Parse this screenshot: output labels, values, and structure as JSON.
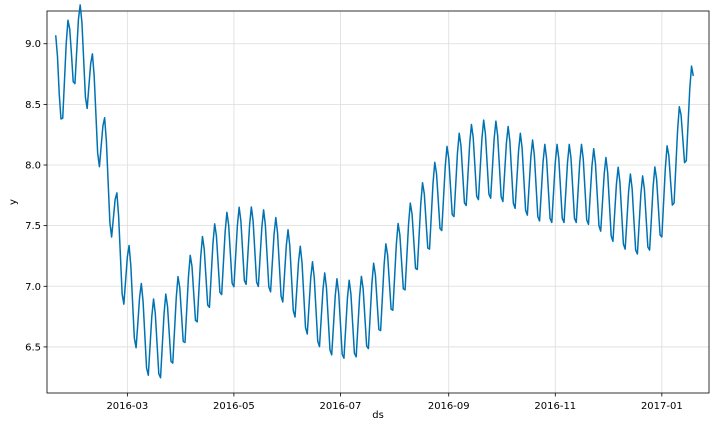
{
  "chart_data": {
    "type": "line",
    "title": "",
    "xlabel": "ds",
    "ylabel": "y",
    "x_range": [
      "2016-01-15",
      "2017-01-28"
    ],
    "ylim": [
      6.12,
      9.27
    ],
    "grid": true,
    "x_ticks": [
      {
        "value": "2016-03-01",
        "label": "2016-03"
      },
      {
        "value": "2016-05-01",
        "label": "2016-05"
      },
      {
        "value": "2016-07-01",
        "label": "2016-07"
      },
      {
        "value": "2016-09-01",
        "label": "2016-09"
      },
      {
        "value": "2016-11-01",
        "label": "2016-11"
      },
      {
        "value": "2017-01-01",
        "label": "2017-01"
      }
    ],
    "y_ticks": [
      {
        "value": 6.5,
        "label": "6.5"
      },
      {
        "value": 7.0,
        "label": "7.0"
      },
      {
        "value": 7.5,
        "label": "7.5"
      },
      {
        "value": 8.0,
        "label": "8.0"
      },
      {
        "value": 8.5,
        "label": "8.5"
      },
      {
        "value": 9.0,
        "label": "9.0"
      }
    ],
    "series": [
      {
        "color": "#0072B2",
        "x": [
          "2016-01-20",
          "2016-01-22",
          "2016-01-24",
          "2016-01-26",
          "2016-01-29",
          "2016-02-02",
          "2016-02-04",
          "2016-02-06",
          "2016-02-08",
          "2016-02-11",
          "2016-02-13",
          "2016-02-15",
          "2016-02-18",
          "2016-02-21",
          "2016-02-24",
          "2016-02-27",
          "2016-03-01",
          "2016-03-04",
          "2016-03-07",
          "2016-03-10",
          "2016-03-13",
          "2016-03-17",
          "2016-03-20",
          "2016-03-24",
          "2016-03-28",
          "2016-04-01",
          "2016-04-05",
          "2016-04-09",
          "2016-04-13",
          "2016-04-17",
          "2016-04-21",
          "2016-04-25",
          "2016-04-29",
          "2016-05-03",
          "2016-05-08",
          "2016-05-13",
          "2016-05-18",
          "2016-05-23",
          "2016-05-28",
          "2016-06-02",
          "2016-06-07",
          "2016-06-12",
          "2016-06-17",
          "2016-06-22",
          "2016-06-27",
          "2016-07-02",
          "2016-07-07",
          "2016-07-12",
          "2016-07-17",
          "2016-07-22",
          "2016-07-27",
          "2016-08-01",
          "2016-08-06",
          "2016-08-11",
          "2016-08-16",
          "2016-08-21",
          "2016-08-26",
          "2016-09-01",
          "2016-09-06",
          "2016-09-11",
          "2016-09-16",
          "2016-09-21",
          "2016-09-26",
          "2016-10-01",
          "2016-10-06",
          "2016-10-11",
          "2016-10-16",
          "2016-10-21",
          "2016-10-26",
          "2016-11-01",
          "2016-11-06",
          "2016-11-11",
          "2016-11-16",
          "2016-11-21",
          "2016-11-26",
          "2016-12-01",
          "2016-12-06",
          "2016-12-11",
          "2016-12-16",
          "2016-12-21",
          "2016-12-26",
          "2017-01-01",
          "2017-01-06",
          "2017-01-10",
          "2017-01-14",
          "2017-01-17",
          "2017-01-19"
        ],
        "trend": [
          8.74,
          8.62,
          8.7,
          8.82,
          8.95,
          9.02,
          8.96,
          8.84,
          8.72,
          8.52,
          8.38,
          8.22,
          7.98,
          7.72,
          7.44,
          7.22,
          7.06,
          6.9,
          6.76,
          6.66,
          6.58,
          6.56,
          6.56,
          6.62,
          6.7,
          6.8,
          6.9,
          7.0,
          7.08,
          7.14,
          7.2,
          7.26,
          7.3,
          7.32,
          7.33,
          7.32,
          7.3,
          7.26,
          7.2,
          7.12,
          7.02,
          6.92,
          6.84,
          6.78,
          6.74,
          6.72,
          6.72,
          6.74,
          6.8,
          6.9,
          7.02,
          7.14,
          7.26,
          7.38,
          7.5,
          7.62,
          7.74,
          7.84,
          7.92,
          7.98,
          8.02,
          8.04,
          8.04,
          8.02,
          7.98,
          7.94,
          7.9,
          7.86,
          7.84,
          7.84,
          7.84,
          7.84,
          7.84,
          7.82,
          7.78,
          7.72,
          7.66,
          7.62,
          7.58,
          7.58,
          7.62,
          7.72,
          7.9,
          8.1,
          8.3,
          8.45,
          8.52
        ],
        "weekly_amplitude": 0.33
      }
    ]
  }
}
